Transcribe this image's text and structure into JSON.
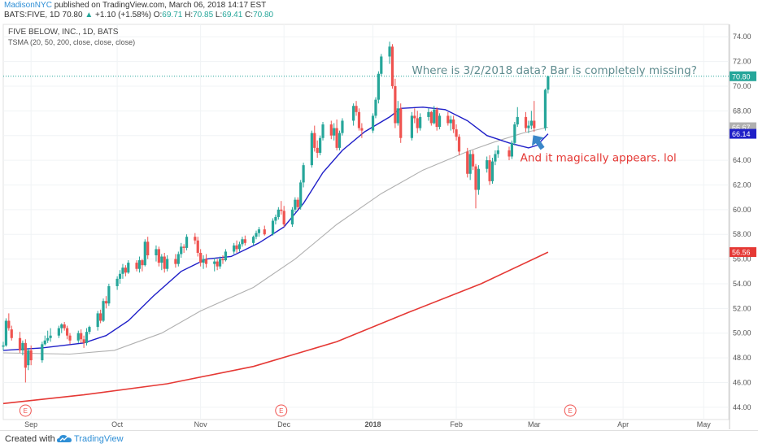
{
  "header": {
    "author": "MadisonNYC",
    "published_text": "published on TradingView.com, March 06, 2018 14:17 EST",
    "symbol": "BATS:FIVE, 1D",
    "last": "70.80",
    "change_arrow": "▲",
    "change": "+1.10 (+1.58%)",
    "o_label": "O:",
    "o_value": "69.71",
    "h_label": "H:",
    "h_value": "70.85",
    "l_label": "L:",
    "l_value": "69.41",
    "c_label": "C:",
    "c_value": "70.80"
  },
  "footer": {
    "created_with": "Created with",
    "brand": "TradingView"
  },
  "chart_data": {
    "type": "candlestick",
    "title": "FIVE BELOW, INC., 1D, BATS",
    "subtitle": "TSMA (20, 50, 200, close, close, close)",
    "ylim": [
      43,
      75
    ],
    "y_ticks": [
      "44.00",
      "46.00",
      "48.00",
      "50.00",
      "52.00",
      "54.00",
      "56.00",
      "58.00",
      "60.00",
      "62.00",
      "64.00",
      "66.00",
      "68.00",
      "70.00",
      "72.00",
      "74.00"
    ],
    "x_ticks": [
      "Sep",
      "Oct",
      "Nov",
      "Dec",
      "2018",
      "Feb",
      "Mar",
      "Apr",
      "May"
    ],
    "x_tick_dates": [
      "2017-09-01",
      "2017-10-02",
      "2017-11-01",
      "2017-12-01",
      "2018-01-02",
      "2018-02-01",
      "2018-03-01",
      "2018-04-02",
      "2018-05-01"
    ],
    "x_range": [
      "2017-08-22",
      "2018-05-10"
    ],
    "price_labels": [
      {
        "text": "70.80",
        "value": 70.8,
        "color": "#26a69a"
      },
      {
        "text": "66.67",
        "value": 66.67,
        "color": "#b0b0b0"
      },
      {
        "text": "66.14",
        "value": 66.14,
        "color": "#1f1fc8"
      },
      {
        "text": "56.56",
        "value": 56.56,
        "color": "#e53935"
      }
    ],
    "last_price_line": 70.8,
    "earnings_markers": {
      "label": "E",
      "dates": [
        "2017-08-30",
        "2017-11-30",
        "2018-03-14"
      ]
    },
    "colors": {
      "up": "#26a69a",
      "down": "#ef5350",
      "sma20": "#1f1fc8",
      "sma50": "#b0b0b0",
      "sma200": "#e53935",
      "annotation_top": "#5f8c8f",
      "annotation_bottom": "#e53935",
      "arrow": "#3a86c8"
    },
    "series": [
      {
        "name": "SMA 20",
        "points": [
          [
            "2017-08-22",
            48.6
          ],
          [
            "2017-09-05",
            48.8
          ],
          [
            "2017-09-20",
            49.2
          ],
          [
            "2017-09-28",
            49.8
          ],
          [
            "2017-10-06",
            51.0
          ],
          [
            "2017-10-15",
            53.0
          ],
          [
            "2017-10-25",
            55.0
          ],
          [
            "2017-11-03",
            56.0
          ],
          [
            "2017-11-12",
            56.2
          ],
          [
            "2017-11-22",
            57.3
          ],
          [
            "2017-12-01",
            58.6
          ],
          [
            "2017-12-08",
            60.5
          ],
          [
            "2017-12-15",
            63.0
          ],
          [
            "2017-12-22",
            64.8
          ],
          [
            "2017-12-30",
            66.3
          ],
          [
            "2018-01-08",
            67.5
          ],
          [
            "2018-01-12",
            68.2
          ],
          [
            "2018-01-20",
            68.3
          ],
          [
            "2018-01-28",
            68.1
          ],
          [
            "2018-02-05",
            67.2
          ],
          [
            "2018-02-12",
            66.0
          ],
          [
            "2018-02-20",
            65.4
          ],
          [
            "2018-02-27",
            65.0
          ],
          [
            "2018-03-02",
            65.2
          ],
          [
            "2018-03-06",
            66.14
          ]
        ]
      },
      {
        "name": "SMA 50",
        "points": [
          [
            "2017-08-22",
            48.4
          ],
          [
            "2017-09-15",
            48.3
          ],
          [
            "2017-10-01",
            48.6
          ],
          [
            "2017-10-18",
            50.0
          ],
          [
            "2017-11-01",
            51.8
          ],
          [
            "2017-11-20",
            53.7
          ],
          [
            "2017-12-05",
            56.0
          ],
          [
            "2017-12-20",
            58.8
          ],
          [
            "2018-01-05",
            61.3
          ],
          [
            "2018-01-20",
            63.2
          ],
          [
            "2018-02-05",
            64.7
          ],
          [
            "2018-02-15",
            65.5
          ],
          [
            "2018-02-25",
            66.2
          ],
          [
            "2018-03-06",
            66.67
          ]
        ]
      },
      {
        "name": "SMA 200",
        "points": [
          [
            "2017-08-22",
            44.3
          ],
          [
            "2017-09-20",
            45.0
          ],
          [
            "2017-10-20",
            45.9
          ],
          [
            "2017-11-20",
            47.3
          ],
          [
            "2017-12-20",
            49.3
          ],
          [
            "2018-01-15",
            51.7
          ],
          [
            "2018-02-10",
            54.0
          ],
          [
            "2018-03-06",
            56.56
          ]
        ]
      }
    ],
    "candles": [
      [
        "2017-08-22",
        48.9,
        49.3,
        48.6,
        49.0
      ],
      [
        "2017-08-23",
        49.0,
        51.2,
        48.9,
        51.0
      ],
      [
        "2017-08-24",
        51.0,
        51.6,
        50.2,
        50.4
      ],
      [
        "2017-08-25",
        50.3,
        50.6,
        49.4,
        49.6
      ],
      [
        "2017-08-28",
        49.6,
        50.1,
        48.4,
        48.6
      ],
      [
        "2017-08-29",
        48.6,
        49.4,
        48.2,
        49.2
      ],
      [
        "2017-08-30",
        49.2,
        49.5,
        46.0,
        47.2
      ],
      [
        "2017-08-31",
        47.4,
        48.8,
        47.0,
        48.6
      ],
      [
        "2017-09-01",
        48.6,
        49.0,
        47.4,
        47.8
      ],
      [
        "2017-09-05",
        47.8,
        49.3,
        47.6,
        49.1
      ],
      [
        "2017-09-06",
        49.1,
        49.8,
        49.0,
        49.4
      ],
      [
        "2017-09-07",
        49.4,
        50.2,
        49.2,
        49.6
      ],
      [
        "2017-09-08",
        49.6,
        50.4,
        49.3,
        49.8
      ],
      [
        "2017-09-11",
        49.8,
        50.6,
        49.6,
        50.4
      ],
      [
        "2017-09-12",
        50.4,
        50.8,
        50.0,
        50.7
      ],
      [
        "2017-09-13",
        50.7,
        50.9,
        50.2,
        50.4
      ],
      [
        "2017-09-14",
        50.4,
        50.6,
        49.5,
        49.8
      ],
      [
        "2017-09-15",
        49.8,
        50.0,
        49.1,
        49.4
      ],
      [
        "2017-09-18",
        49.4,
        50.2,
        49.2,
        50.0
      ],
      [
        "2017-09-19",
        50.0,
        50.3,
        49.2,
        49.5
      ],
      [
        "2017-09-20",
        49.5,
        49.8,
        48.8,
        49.2
      ],
      [
        "2017-09-21",
        49.2,
        50.4,
        49.0,
        50.1
      ],
      [
        "2017-09-22",
        50.1,
        50.6,
        49.9,
        50.5
      ],
      [
        "2017-09-25",
        50.5,
        51.8,
        50.2,
        51.6
      ],
      [
        "2017-09-26",
        51.6,
        51.9,
        50.8,
        51.0
      ],
      [
        "2017-09-27",
        51.0,
        52.8,
        50.9,
        52.6
      ],
      [
        "2017-09-28",
        52.6,
        53.0,
        52.0,
        52.4
      ],
      [
        "2017-09-29",
        52.4,
        54.0,
        52.2,
        53.8
      ],
      [
        "2017-10-02",
        53.8,
        54.6,
        53.5,
        54.4
      ],
      [
        "2017-10-03",
        54.4,
        55.1,
        54.0,
        54.8
      ],
      [
        "2017-10-04",
        54.8,
        55.6,
        54.4,
        55.3
      ],
      [
        "2017-10-05",
        55.3,
        55.5,
        54.6,
        54.9
      ],
      [
        "2017-10-06",
        54.9,
        55.9,
        54.8,
        55.7
      ],
      [
        "2017-10-09",
        55.7,
        55.9,
        55.0,
        55.2
      ],
      [
        "2017-10-10",
        55.2,
        56.2,
        54.9,
        55.9
      ],
      [
        "2017-10-11",
        55.9,
        56.0,
        55.0,
        55.5
      ],
      [
        "2017-10-12",
        55.5,
        57.6,
        55.4,
        57.4
      ],
      [
        "2017-10-13",
        57.4,
        57.8,
        56.0,
        56.3
      ],
      [
        "2017-10-16",
        56.3,
        57.1,
        55.8,
        56.8
      ],
      [
        "2017-10-17",
        56.8,
        57.0,
        55.4,
        55.7
      ],
      [
        "2017-10-18",
        55.7,
        56.4,
        55.1,
        56.2
      ],
      [
        "2017-10-19",
        56.2,
        56.5,
        54.9,
        55.2
      ],
      [
        "2017-10-20",
        55.2,
        56.3,
        55.0,
        56.0
      ],
      [
        "2017-10-23",
        56.0,
        56.4,
        55.3,
        55.6
      ],
      [
        "2017-10-24",
        55.6,
        56.6,
        55.4,
        56.4
      ],
      [
        "2017-10-25",
        56.4,
        57.3,
        56.1,
        57.0
      ],
      [
        "2017-10-26",
        57.0,
        57.2,
        56.5,
        56.9
      ],
      [
        "2017-10-27",
        56.9,
        58.0,
        56.7,
        57.8
      ],
      [
        "2017-10-30",
        57.8,
        58.1,
        57.2,
        57.5
      ],
      [
        "2017-10-31",
        57.5,
        57.8,
        56.2,
        56.5
      ],
      [
        "2017-11-01",
        56.5,
        56.8,
        55.4,
        55.7
      ],
      [
        "2017-11-02",
        55.7,
        56.3,
        55.2,
        56.0
      ],
      [
        "2017-11-03",
        56.0,
        56.4,
        55.3,
        55.6
      ],
      [
        "2017-11-06",
        55.6,
        56.1,
        55.0,
        55.8
      ],
      [
        "2017-11-07",
        55.8,
        56.0,
        55.1,
        55.4
      ],
      [
        "2017-11-08",
        55.4,
        56.2,
        55.2,
        56.0
      ],
      [
        "2017-11-09",
        56.0,
        56.3,
        55.6,
        55.9
      ],
      [
        "2017-11-10",
        55.9,
        56.8,
        55.8,
        56.6
      ],
      [
        "2017-11-13",
        56.6,
        57.3,
        56.4,
        57.1
      ],
      [
        "2017-11-14",
        57.1,
        57.5,
        56.5,
        56.8
      ],
      [
        "2017-11-15",
        56.8,
        57.4,
        56.6,
        57.2
      ],
      [
        "2017-11-16",
        57.2,
        57.8,
        57.0,
        57.6
      ],
      [
        "2017-11-17",
        57.6,
        57.9,
        57.1,
        57.3
      ],
      [
        "2017-11-20",
        57.3,
        57.9,
        57.1,
        57.8
      ],
      [
        "2017-11-21",
        57.8,
        58.3,
        57.6,
        58.1
      ],
      [
        "2017-11-22",
        58.1,
        58.6,
        57.8,
        58.4
      ],
      [
        "2017-11-24",
        58.4,
        58.7,
        57.9,
        58.0
      ],
      [
        "2017-11-27",
        58.0,
        59.3,
        57.9,
        59.1
      ],
      [
        "2017-11-28",
        59.1,
        59.6,
        58.8,
        59.4
      ],
      [
        "2017-11-29",
        59.4,
        60.2,
        59.2,
        60.0
      ],
      [
        "2017-11-30",
        60.0,
        60.7,
        59.6,
        59.9
      ],
      [
        "2017-12-01",
        59.9,
        60.3,
        58.6,
        58.8
      ],
      [
        "2017-12-04",
        58.8,
        60.2,
        58.6,
        60.0
      ],
      [
        "2017-12-05",
        60.0,
        61.0,
        59.8,
        60.8
      ],
      [
        "2017-12-06",
        60.8,
        61.0,
        60.0,
        60.2
      ],
      [
        "2017-12-07",
        60.2,
        62.4,
        60.0,
        62.2
      ],
      [
        "2017-12-08",
        62.2,
        63.8,
        61.8,
        63.6
      ],
      [
        "2017-12-11",
        63.6,
        66.4,
        63.4,
        66.2
      ],
      [
        "2017-12-12",
        66.2,
        66.8,
        64.7,
        65.0
      ],
      [
        "2017-12-13",
        65.0,
        65.6,
        64.2,
        64.6
      ],
      [
        "2017-12-14",
        64.6,
        66.0,
        64.4,
        65.8
      ],
      [
        "2017-12-15",
        65.8,
        67.1,
        65.6,
        66.9
      ],
      [
        "2017-12-18",
        66.9,
        67.2,
        65.7,
        66.0
      ],
      [
        "2017-12-19",
        66.0,
        67.0,
        65.6,
        66.6
      ],
      [
        "2017-12-20",
        66.6,
        67.3,
        64.8,
        65.0
      ],
      [
        "2017-12-21",
        65.0,
        66.4,
        64.8,
        66.2
      ],
      [
        "2017-12-22",
        66.2,
        67.4,
        66.0,
        67.2
      ],
      [
        "2017-12-26",
        67.2,
        68.6,
        66.8,
        68.4
      ],
      [
        "2017-12-27",
        68.4,
        68.8,
        67.6,
        67.9
      ],
      [
        "2017-12-28",
        67.9,
        68.2,
        66.4,
        66.6
      ],
      [
        "2017-12-29",
        66.6,
        67.0,
        65.8,
        66.4
      ],
      [
        "2018-01-02",
        66.4,
        67.8,
        66.2,
        67.6
      ],
      [
        "2018-01-03",
        67.6,
        69.1,
        67.4,
        68.9
      ],
      [
        "2018-01-04",
        68.9,
        71.2,
        68.6,
        71.0
      ],
      [
        "2018-01-05",
        71.0,
        72.6,
        70.8,
        72.4
      ],
      [
        "2018-01-08",
        72.4,
        73.6,
        71.8,
        73.2
      ],
      [
        "2018-01-09",
        73.2,
        73.4,
        69.8,
        70.0
      ],
      [
        "2018-01-10",
        70.0,
        70.6,
        66.6,
        67.0
      ],
      [
        "2018-01-11",
        67.0,
        68.8,
        66.8,
        68.2
      ],
      [
        "2018-01-12",
        68.2,
        68.6,
        65.4,
        65.8
      ],
      [
        "2018-01-16",
        65.8,
        67.9,
        65.6,
        67.6
      ],
      [
        "2018-01-17",
        67.6,
        68.2,
        67.0,
        67.4
      ],
      [
        "2018-01-18",
        67.4,
        68.0,
        66.2,
        66.6
      ],
      [
        "2018-01-19",
        66.6,
        67.8,
        66.4,
        67.5
      ],
      [
        "2018-01-22",
        67.5,
        68.2,
        67.2,
        67.9
      ],
      [
        "2018-01-23",
        67.9,
        68.0,
        66.8,
        67.0
      ],
      [
        "2018-01-24",
        67.0,
        68.4,
        66.9,
        68.1
      ],
      [
        "2018-01-25",
        68.1,
        68.3,
        66.4,
        66.7
      ],
      [
        "2018-01-26",
        66.7,
        67.8,
        66.5,
        67.6
      ],
      [
        "2018-01-29",
        67.6,
        67.9,
        66.8,
        67.0
      ],
      [
        "2018-01-30",
        67.0,
        67.6,
        66.4,
        67.3
      ],
      [
        "2018-01-31",
        67.3,
        67.6,
        66.2,
        66.5
      ],
      [
        "2018-02-01",
        66.5,
        66.9,
        65.6,
        65.9
      ],
      [
        "2018-02-02",
        65.9,
        66.1,
        64.4,
        64.7
      ],
      [
        "2018-02-05",
        64.7,
        65.0,
        62.6,
        62.9
      ],
      [
        "2018-02-06",
        62.9,
        64.8,
        62.4,
        64.5
      ],
      [
        "2018-02-07",
        64.5,
        64.8,
        63.2,
        63.5
      ],
      [
        "2018-02-08",
        63.5,
        63.7,
        60.1,
        61.6
      ],
      [
        "2018-02-09",
        61.6,
        63.6,
        61.2,
        63.3
      ],
      [
        "2018-02-12",
        63.3,
        64.3,
        63.0,
        64.0
      ],
      [
        "2018-02-13",
        64.0,
        64.4,
        62.0,
        62.3
      ],
      [
        "2018-02-14",
        62.3,
        64.2,
        62.1,
        63.9
      ],
      [
        "2018-02-15",
        63.9,
        64.8,
        63.6,
        64.5
      ],
      [
        "2018-02-16",
        64.5,
        65.2,
        64.2,
        64.8
      ],
      [
        "2018-02-20",
        64.8,
        65.1,
        64.0,
        64.3
      ],
      [
        "2018-02-21",
        64.3,
        65.6,
        64.1,
        65.4
      ],
      [
        "2018-02-22",
        65.4,
        67.1,
        65.2,
        66.9
      ],
      [
        "2018-02-23",
        66.9,
        68.3,
        66.7,
        67.5
      ],
      [
        "2018-02-26",
        67.5,
        67.9,
        66.3,
        66.6
      ],
      [
        "2018-02-27",
        66.6,
        67.2,
        66.2,
        66.8
      ],
      [
        "2018-02-28",
        66.8,
        68.0,
        66.5,
        67.2
      ],
      [
        "2018-03-01",
        67.2,
        68.8,
        66.3,
        66.6
      ],
      [
        "2018-03-05",
        66.6,
        69.8,
        66.4,
        69.7
      ],
      [
        "2018-03-06",
        69.71,
        70.85,
        69.41,
        70.8
      ]
    ],
    "annotations": [
      {
        "text": "Where is 3/2/2018 data? Bar is completely missing?",
        "date": "2018-01-16",
        "value": 71.0,
        "color": "#5f8c8f"
      },
      {
        "text": "And it magically appears. lol",
        "date": "2018-02-24",
        "value": 63.9,
        "color": "#e53935"
      }
    ]
  }
}
